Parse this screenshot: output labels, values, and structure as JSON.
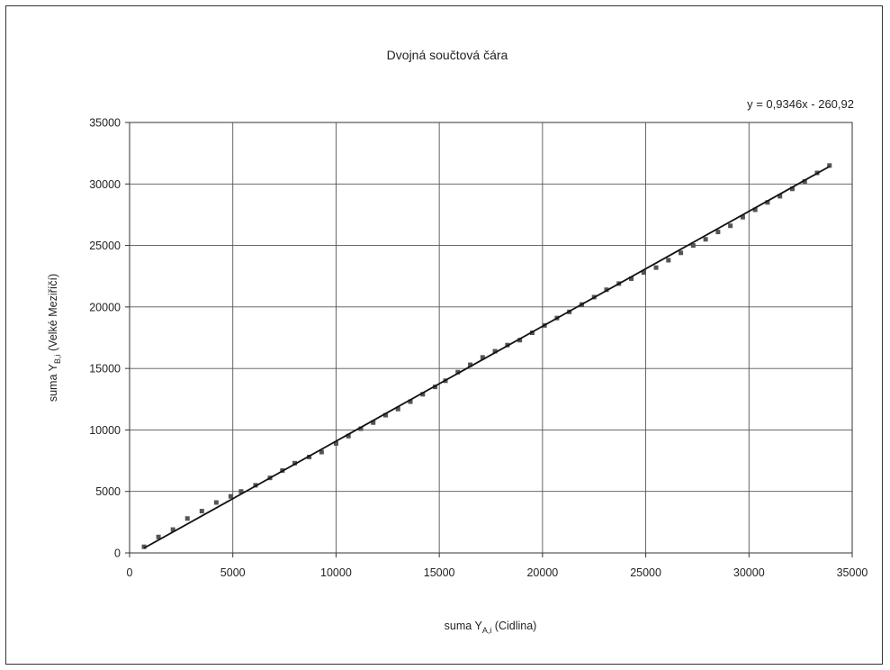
{
  "chart_data": {
    "type": "scatter",
    "title": "Dvojná součtová čára",
    "xlabel": {
      "main": "suma Y",
      "sub": "A,i",
      "rest": " (Cidlina)"
    },
    "ylabel": {
      "main": "suma Y",
      "sub": "B,i",
      "rest": "  (Velké Meziříčí)"
    },
    "xlim": [
      0,
      35000
    ],
    "ylim": [
      0,
      35000
    ],
    "xticks": [
      0,
      5000,
      10000,
      15000,
      20000,
      25000,
      30000,
      35000
    ],
    "yticks": [
      0,
      5000,
      10000,
      15000,
      20000,
      25000,
      30000,
      35000
    ],
    "grid": true,
    "trendline": {
      "label": "y = 0,9346x - 260,92",
      "slope": 0.9346,
      "intercept": -260.92,
      "x_range": [
        700,
        33900
      ]
    },
    "series": [
      {
        "marker_color": "#555555",
        "x": [
          700,
          1400,
          2100,
          2800,
          3500,
          4200,
          4900,
          5400,
          6100,
          6800,
          7400,
          8000,
          8700,
          9300,
          10000,
          10600,
          11200,
          11800,
          12400,
          13000,
          13600,
          14200,
          14800,
          15300,
          15900,
          16500,
          17100,
          17700,
          18300,
          18900,
          19500,
          20100,
          20700,
          21300,
          21900,
          22500,
          23100,
          23700,
          24300,
          24900,
          25500,
          26100,
          26700,
          27300,
          27900,
          28500,
          29100,
          29700,
          30300,
          30900,
          31500,
          32100,
          32700,
          33300,
          33900
        ],
        "y": [
          500,
          1300,
          1900,
          2800,
          3400,
          4100,
          4600,
          5000,
          5500,
          6100,
          6700,
          7300,
          7800,
          8200,
          8900,
          9500,
          10100,
          10600,
          11200,
          11700,
          12300,
          12900,
          13500,
          14000,
          14700,
          15300,
          15900,
          16400,
          16900,
          17300,
          17900,
          18500,
          19100,
          19600,
          20200,
          20800,
          21400,
          21900,
          22300,
          22800,
          23200,
          23800,
          24400,
          25000,
          25500,
          26100,
          26600,
          27300,
          27900,
          28500,
          29000,
          29600,
          30200,
          30900,
          31500
        ]
      }
    ]
  }
}
